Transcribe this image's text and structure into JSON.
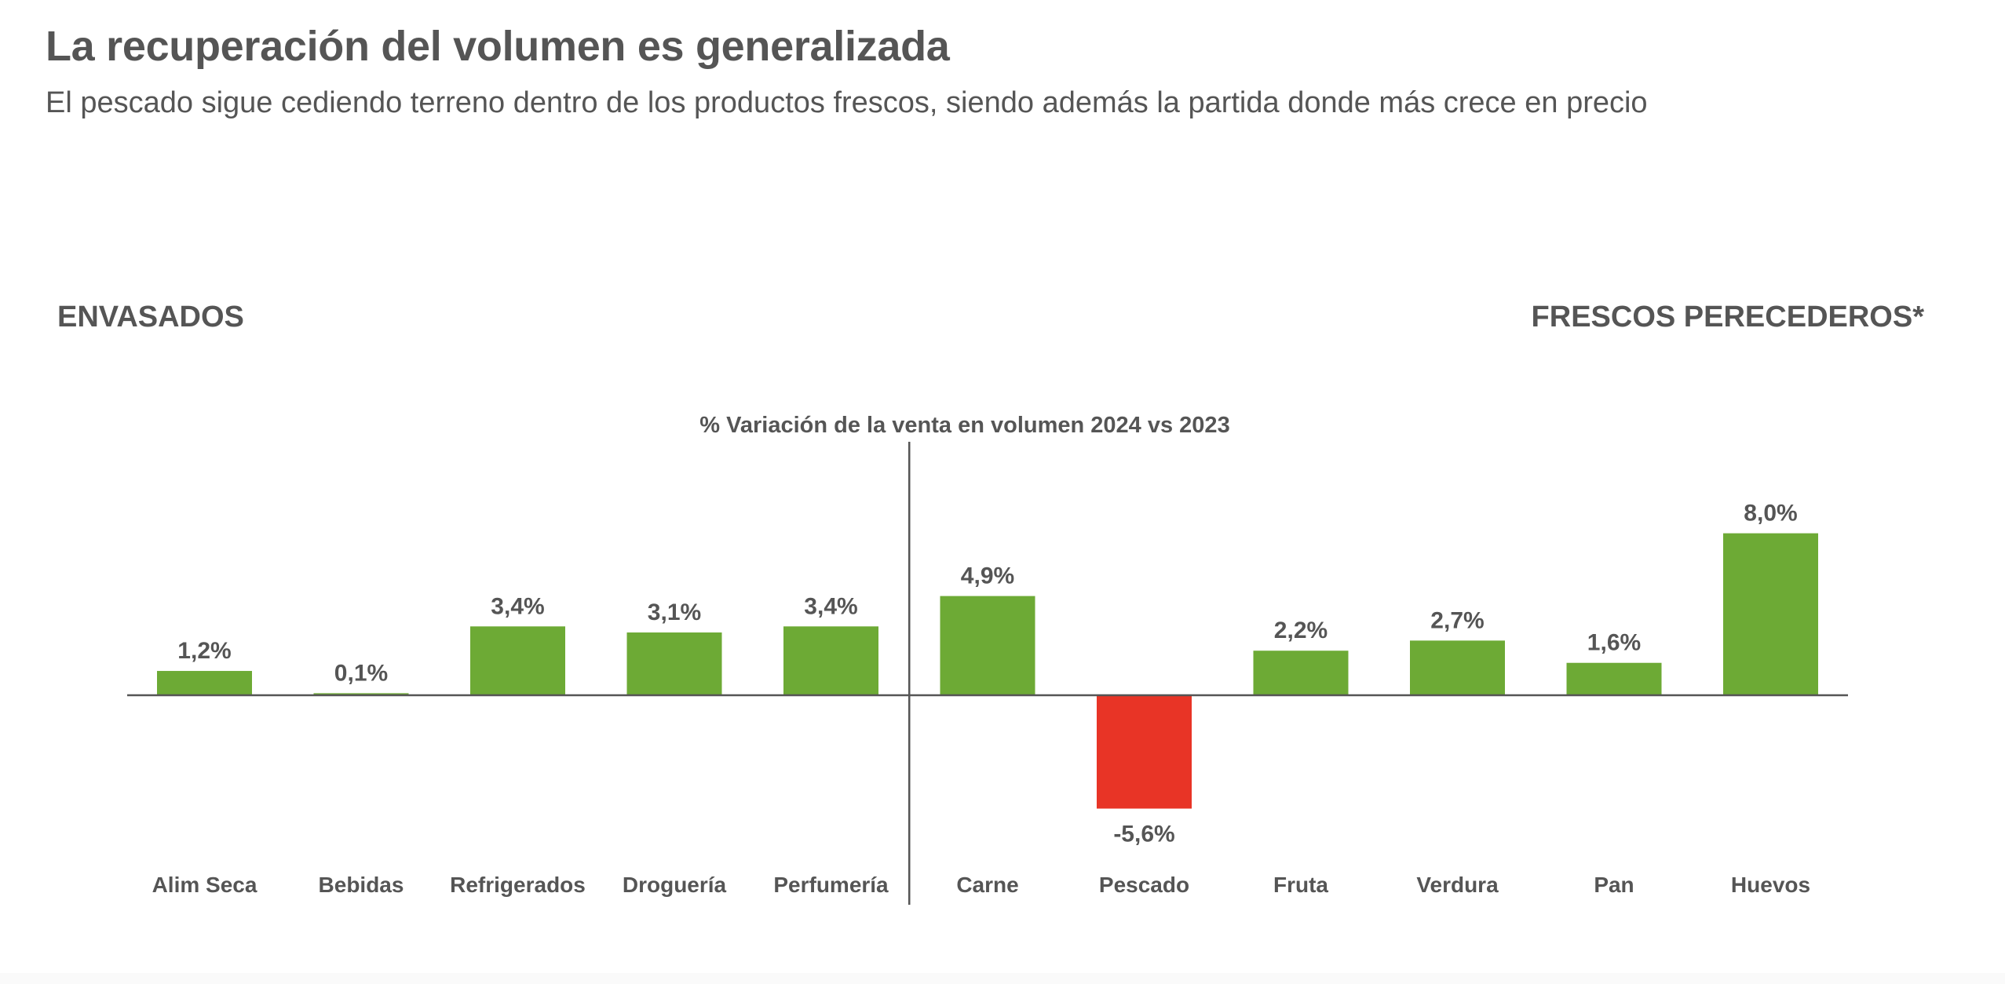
{
  "header": {
    "title": "La recuperación del volumen es generalizada",
    "subtitle": "El pescado sigue cediendo terreno dentro de los productos frescos, siendo además la partida donde más crece en precio"
  },
  "sections": {
    "left": "ENVASADOS",
    "right": "FRESCOS PERECEDEROS*"
  },
  "colors": {
    "positive": "#6DAA35",
    "negative": "#E83426",
    "text": "#555555",
    "axis": "#555555"
  },
  "chart_data": {
    "type": "bar",
    "title": "% Variación de la venta en volumen 2024 vs 2023",
    "xlabel": "",
    "ylabel": "",
    "ylim": [
      -5.6,
      8.0
    ],
    "grid": false,
    "legend": "none",
    "groups": [
      {
        "name": "ENVASADOS",
        "categories": [
          "Alim Seca",
          "Bebidas",
          "Refrigerados",
          "Droguería",
          "Perfumería"
        ]
      },
      {
        "name": "FRESCOS PERECEDEROS*",
        "categories": [
          "Carne",
          "Pescado",
          "Fruta",
          "Verdura",
          "Pan",
          "Huevos"
        ]
      }
    ],
    "categories": [
      "Alim Seca",
      "Bebidas",
      "Refrigerados",
      "Droguería",
      "Perfumería",
      "Carne",
      "Pescado",
      "Fruta",
      "Verdura",
      "Pan",
      "Huevos"
    ],
    "values": [
      1.2,
      0.1,
      3.4,
      3.1,
      3.4,
      4.9,
      -5.6,
      2.2,
      2.7,
      1.6,
      8.0
    ],
    "data_labels": [
      "1,2%",
      "0,1%",
      "3,4%",
      "3,1%",
      "3,4%",
      "4,9%",
      "-5,6%",
      "2,2%",
      "2,7%",
      "1,6%",
      "8,0%"
    ],
    "divider_after_index": 4
  }
}
